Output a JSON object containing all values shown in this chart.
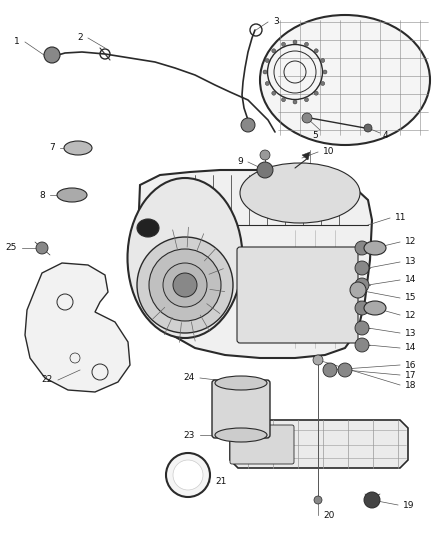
{
  "bg_color": "#ffffff",
  "fig_width": 4.38,
  "fig_height": 5.33,
  "line_color": "#2a2a2a",
  "label_fontsize": 6.5,
  "callout_line_color": "#555555",
  "part_color": "#aaaaaa",
  "dark_part": "#333333"
}
